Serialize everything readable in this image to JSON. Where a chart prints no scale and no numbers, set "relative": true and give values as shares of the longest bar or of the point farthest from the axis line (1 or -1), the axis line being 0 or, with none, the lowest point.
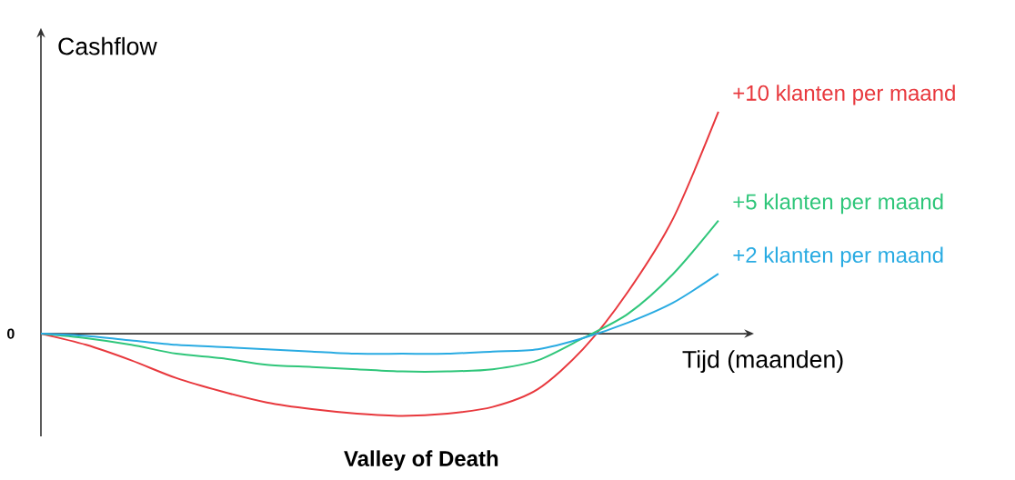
{
  "chart_data": {
    "type": "line",
    "relative": true,
    "ylabel": "Cashflow",
    "xlabel": "Tijd (maanden)",
    "annotations": [
      "Valley of Death",
      "0"
    ],
    "marker": "none",
    "line_style": "solid",
    "legend": false,
    "categories": [
      null,
      null,
      null,
      null,
      null,
      null,
      null,
      null,
      null,
      null,
      null,
      null,
      null,
      null,
      null,
      null
    ],
    "series": [
      {
        "name": "+10 klanten per maand",
        "color": "#e8383d",
        "values": [
          0,
          -0.05,
          -0.12,
          -0.2,
          -0.26,
          -0.31,
          -0.34,
          -0.36,
          -0.37,
          -0.36,
          -0.33,
          -0.25,
          -0.07,
          0.19,
          0.52,
          1
        ]
      },
      {
        "name": "+5 klanten per maand",
        "color": "#2fc67a",
        "values": [
          0,
          -0.02,
          -0.05,
          -0.09,
          -0.11,
          -0.14,
          -0.15,
          -0.16,
          -0.17,
          -0.17,
          -0.16,
          -0.12,
          -0.02,
          0.09,
          0.27,
          0.51
        ]
      },
      {
        "name": "+2 klanten per maand",
        "color": "#29abe2",
        "values": [
          0,
          -0.01,
          -0.03,
          -0.05,
          -0.06,
          -0.07,
          -0.08,
          -0.09,
          -0.09,
          -0.09,
          -0.08,
          -0.07,
          -0.02,
          0.05,
          0.14,
          0.27
        ]
      }
    ]
  }
}
